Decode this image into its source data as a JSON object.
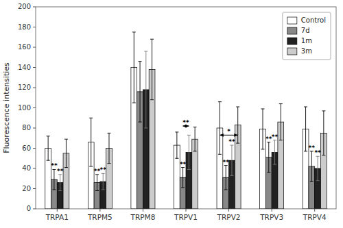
{
  "chart_data": {
    "type": "bar",
    "categories": [
      "TRPA1",
      "TRPM5",
      "TRPM8",
      "TRPV1",
      "TRPV2",
      "TRPV3",
      "TRPV4"
    ],
    "series": [
      {
        "name": "Control",
        "color": "#ffffff",
        "values": [
          60,
          66,
          140,
          63,
          80,
          79,
          79
        ],
        "errors": [
          12,
          24,
          35,
          13,
          26,
          20,
          22
        ]
      },
      {
        "name": "7d",
        "color": "#888888",
        "values": [
          29,
          26,
          116,
          31,
          31,
          51,
          42
        ],
        "errors": [
          10,
          8,
          30,
          10,
          12,
          15,
          15
        ]
      },
      {
        "name": "1m",
        "color": "#222222",
        "values": [
          26,
          27,
          118,
          56,
          48,
          56,
          40
        ],
        "errors": [
          8,
          8,
          38,
          17,
          15,
          12,
          12
        ]
      },
      {
        "name": "3m",
        "color": "#cccccc",
        "values": [
          55,
          60,
          138,
          69,
          83,
          86,
          75
        ],
        "errors": [
          14,
          15,
          30,
          12,
          18,
          18,
          22
        ]
      }
    ],
    "y_label": "Fluorescence intensities",
    "ylim": [
      0,
      200
    ],
    "yticks": [
      0,
      20,
      40,
      60,
      80,
      100,
      120,
      140,
      160,
      180,
      200
    ],
    "grid": false,
    "legend": "upper right",
    "annotations": [
      {
        "category": "TRPA1",
        "series": "7d",
        "text": "**"
      },
      {
        "category": "TRPA1",
        "series": "1m",
        "text": "**"
      },
      {
        "category": "TRPM5",
        "series": "7d",
        "text": "**"
      },
      {
        "category": "TRPM5",
        "series": "1m",
        "text": "**"
      },
      {
        "category": "TRPV1",
        "series": "7d",
        "text": "**"
      },
      {
        "category": "TRPV2",
        "series": "7d",
        "text": "**"
      },
      {
        "category": "TRPV2",
        "series": "1m",
        "text": "**"
      },
      {
        "category": "TRPV3",
        "series": "7d",
        "text": "**"
      },
      {
        "category": "TRPV3",
        "series": "1m",
        "text": "**"
      },
      {
        "category": "TRPV4",
        "series": "7d",
        "text": "**"
      },
      {
        "category": "TRPV4",
        "series": "1m",
        "text": "**"
      },
      {
        "category": "TRPV1",
        "from": "7d",
        "to": "1m",
        "y": 82,
        "text": "**"
      },
      {
        "category": "TRPV2",
        "from": "Control",
        "to": "3m",
        "y": 73,
        "text": "*"
      }
    ]
  }
}
